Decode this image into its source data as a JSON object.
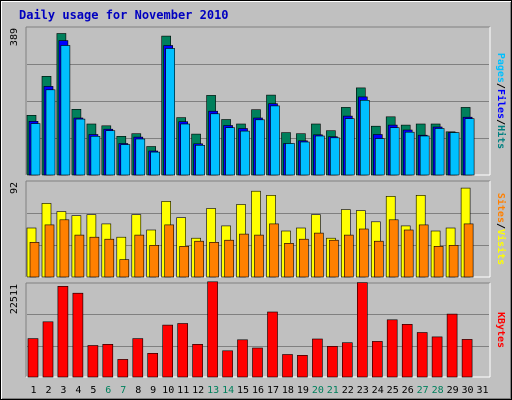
{
  "chart_data": {
    "type": "bar",
    "title": "Daily usage for November 2010",
    "categories": [
      "1",
      "2",
      "3",
      "4",
      "5",
      "6",
      "7",
      "8",
      "9",
      "10",
      "11",
      "12",
      "13",
      "14",
      "15",
      "16",
      "17",
      "18",
      "19",
      "20",
      "21",
      "22",
      "23",
      "24",
      "25",
      "26",
      "27",
      "28",
      "29",
      "30",
      "31"
    ],
    "weekend_days": [
      "6",
      "7",
      "13",
      "14",
      "20",
      "21",
      "27",
      "28"
    ],
    "panels": [
      {
        "id": "pages-files-hits",
        "ylabel": [
          "Pages",
          "Files",
          "Hits"
        ],
        "ylabel_colors": [
          "#00c0ff",
          "#0000ff",
          "#008080"
        ],
        "ytick": "389",
        "ymax": 389,
        "series": [
          {
            "name": "Hits",
            "color": "#00805c",
            "values": [
              159,
              263,
              377,
              175,
              136,
              131,
              103,
              110,
              76,
              370,
              153,
              109,
              212,
              148,
              136,
              174,
              213,
              113,
              110,
              136,
              118,
              180,
              232,
              130,
              155,
              133,
              136,
              136,
              115,
              180
            ]
          },
          {
            "name": "Files",
            "color": "#0000ff",
            "values": [
              143,
              236,
              358,
              152,
              108,
              122,
              84,
              101,
              64,
              345,
              142,
              83,
              170,
              132,
              124,
              152,
              190,
              84,
              91,
              107,
              102,
              157,
              208,
              108,
              133,
              120,
              106,
              128,
              113,
              154
            ]
          },
          {
            "name": "Pages",
            "color": "#00c0ff",
            "values": [
              137,
              227,
              345,
              149,
              103,
              118,
              81,
              96,
              61,
              337,
              136,
              79,
              163,
              126,
              117,
              147,
              184,
              84,
              88,
              104,
              99,
              150,
              199,
              97,
              126,
              114,
              104,
              124,
              113,
              150
            ]
          }
        ]
      },
      {
        "id": "sites-visits",
        "ylabel": [
          "Sites",
          "Visits"
        ],
        "ylabel_colors": [
          "#ff8000",
          "#ffff00"
        ],
        "ytick": "92",
        "ymax": 92,
        "series": [
          {
            "name": "Visits",
            "color": "#ffff00",
            "values": [
              48,
              72,
              64,
              60,
              61,
              52,
              39,
              61,
              46,
              74,
              58,
              38,
              67,
              50,
              71,
              84,
              80,
              45,
              48,
              61,
              38,
              66,
              65,
              54,
              79,
              50,
              80,
              45,
              48,
              87
            ]
          },
          {
            "name": "Sites",
            "color": "#ff8000",
            "values": [
              34,
              51,
              56,
              41,
              39,
              37,
              17,
              41,
              31,
              51,
              30,
              35,
              34,
              36,
              42,
              41,
              52,
              33,
              37,
              43,
              36,
              41,
              47,
              35,
              56,
              46,
              51,
              30,
              31,
              52
            ]
          }
        ]
      },
      {
        "id": "kbytes",
        "ylabel": [
          "KBytes"
        ],
        "ylabel_colors": [
          "#ff0000"
        ],
        "ytick": "22511",
        "ymax": 22511,
        "series": [
          {
            "name": "KBytes",
            "color": "#ff0000",
            "values": [
              9400,
              13500,
              22200,
              20500,
              7700,
              8000,
              4300,
              9400,
              5800,
              12700,
              13100,
              8000,
              23300,
              6400,
              9100,
              7100,
              15900,
              5500,
              5300,
              9300,
              7500,
              8400,
              23100,
              8700,
              14000,
              12900,
              10900,
              9800,
              15400,
              9200
            ]
          }
        ]
      }
    ]
  },
  "colors": {
    "frame_bg": "#c0c0c0",
    "grid": "#808080",
    "title": "#0000c0",
    "weekday_label": "#000000",
    "weekend_label": "#00805c"
  }
}
